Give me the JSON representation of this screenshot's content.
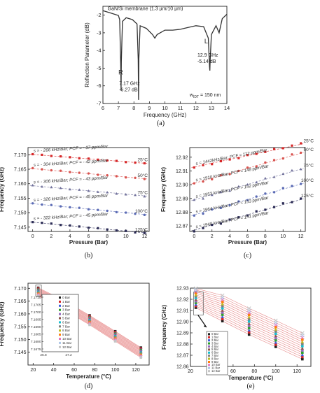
{
  "chart_data": [
    {
      "id": "a",
      "type": "line",
      "panel_label": "(a)",
      "title": "GaN/Si membrane (1.3 µm/10 µm)",
      "xlabel": "Frequency (GHz)",
      "ylabel": "Reflection Parameter (dB)",
      "xlim": [
        6,
        14
      ],
      "ylim": [
        -7,
        -1.5
      ],
      "xticks": [
        6,
        7,
        8,
        9,
        10,
        11,
        12,
        13,
        14
      ],
      "yticks": [
        -2,
        -3,
        -4,
        -5,
        -6,
        -7
      ],
      "series": [
        {
          "x": [
            6.0,
            6.5,
            7.0,
            7.08,
            7.15,
            7.17,
            7.19,
            7.26,
            7.5,
            7.9,
            8.2,
            8.28,
            8.3,
            8.32,
            8.4,
            8.8,
            9.2,
            9.35,
            9.5,
            10.0,
            10.5,
            11.0,
            11.5,
            12.0,
            12.5,
            12.8,
            12.88,
            12.9,
            12.92,
            13.0,
            13.3,
            13.5,
            13.7,
            14.0
          ],
          "y": [
            -1.75,
            -1.88,
            -2.02,
            -2.25,
            -4.8,
            -6.27,
            -4.6,
            -2.35,
            -2.15,
            -2.25,
            -2.5,
            -4.5,
            -6.8,
            -4.5,
            -2.6,
            -2.75,
            -3.1,
            -3.3,
            -3.1,
            -2.85,
            -2.85,
            -2.8,
            -2.7,
            -2.6,
            -2.65,
            -3.3,
            -4.9,
            -5.14,
            -4.6,
            -3.1,
            -2.6,
            -3.0,
            -2.2,
            -1.95
          ]
        }
      ],
      "annotations": [
        {
          "text": "R",
          "x": 7.0,
          "y": -5.35
        },
        {
          "text": "7.17 GHz",
          "x": 7.05,
          "y": -5.95
        },
        {
          "text": "-6.27 dB",
          "x": 7.05,
          "y": -6.3
        },
        {
          "text": "L",
          "x": 12.55,
          "y": -3.6
        },
        {
          "text": "12.9 GHz",
          "x": 12.1,
          "y": -4.35
        },
        {
          "text": "-5.14 dB",
          "x": 12.1,
          "y": -4.7
        },
        {
          "text": "w",
          "sub": "IDT",
          "rest": " = 150 nm",
          "x": 11.6,
          "y": -6.6
        }
      ]
    },
    {
      "id": "b",
      "type": "scatter",
      "panel_label": "(b)",
      "xlabel": "Pressure (Bar)",
      "ylabel": "Frequency (GHz)",
      "xlim": [
        -0.5,
        12.5
      ],
      "ylim": [
        7.1435,
        7.1725
      ],
      "xticks": [
        0,
        2,
        4,
        6,
        8,
        10,
        12
      ],
      "yticks": [
        7.145,
        7.15,
        7.155,
        7.16,
        7.165,
        7.17
      ],
      "ytick_labels": [
        "7.145",
        "7.150",
        "7.155",
        "7.160",
        "7.165",
        "7.170"
      ],
      "x": [
        0,
        1,
        2,
        3,
        4,
        5,
        6,
        7,
        8,
        9,
        10,
        11,
        12
      ],
      "series": [
        {
          "name": "25°C",
          "color": "#d62728",
          "start": 7.1702,
          "slope": -0.000266
        },
        {
          "name": "50°C",
          "color": "#d9534f",
          "start": 7.1653,
          "slope": -0.000304
        },
        {
          "name": "75°C",
          "color": "#6f6f9a",
          "start": 7.1594,
          "slope": -0.000306
        },
        {
          "name": "100°C",
          "color": "#5b6bb5",
          "start": 7.1532,
          "slope": -0.000326
        },
        {
          "name": "125°C",
          "color": "#2b2b55",
          "start": 7.1468,
          "slope": -0.000322
        }
      ],
      "annotations": [
        "s = - 266 kHz/Bar; PCF = - 37 ppm/Bar",
        "s = - 304 kHz/Bar; PCF = - 42 ppm/Bar",
        "s = - 306 kHz/Bar; PCF = - 43 ppm/Bar",
        "s = - 326 kHz/Bar; PCF = - 45 ppm/Bar",
        "s = - 322 kHz/Bar; PCF = - 45 ppm/Bar"
      ]
    },
    {
      "id": "c",
      "type": "scatter",
      "panel_label": "(c)",
      "xlabel": "Pressure (Bar)",
      "ylabel": "Frequency (GHz)",
      "xlim": [
        -0.5,
        12.5
      ],
      "ylim": [
        12.866,
        12.927
      ],
      "xticks": [
        0,
        2,
        4,
        6,
        8,
        10,
        12
      ],
      "yticks": [
        12.87,
        12.88,
        12.89,
        12.9,
        12.91,
        12.92
      ],
      "ytick_labels": [
        "12.87",
        "12.88",
        "12.89",
        "12.90",
        "12.91",
        "12.92"
      ],
      "x": [
        0,
        1,
        2,
        3,
        4,
        5,
        6,
        7,
        8,
        9,
        10,
        11,
        12
      ],
      "series": [
        {
          "name": "25°C",
          "color": "#d62728",
          "start": 12.9125,
          "slope": 0.00144
        },
        {
          "name": "50°C",
          "color": "#d9534f",
          "start": 12.9005,
          "slope": 0.00191
        },
        {
          "name": "75°C",
          "color": "#6f6f9a",
          "start": 12.8885,
          "slope": 0.00195
        },
        {
          "name": "100°C",
          "color": "#5b6bb5",
          "start": 12.8775,
          "slope": 0.00196
        },
        {
          "name": "125°C",
          "color": "#2b2b55",
          "start": 12.8665,
          "slope": 0.00194
        }
      ],
      "annotations": [
        "s = 1442kHz/Bar; PCF = 112 ppm/Bar",
        "s = 1910 kHz/Bar; PCF = 148 ppm/Bar",
        "s = 1953 kHz/Bar; PCF = 152 ppm/Bar",
        "s = 1964 kHz/Bar; PCF = 153 ppm/Bar",
        "s = 1940 kHz/Bar; PCF = 151 ppm/Bar"
      ]
    },
    {
      "id": "d",
      "type": "scatter",
      "panel_label": "(d)",
      "xlabel": "Temperature (°C)",
      "ylabel": "Frequency (GHz)",
      "xlim": [
        15,
        133
      ],
      "ylim": [
        7.14,
        7.172
      ],
      "xticks": [
        20,
        40,
        60,
        80,
        100,
        120
      ],
      "yticks": [
        7.145,
        7.15,
        7.155,
        7.16,
        7.165,
        7.17
      ],
      "ytick_labels": [
        "7.145",
        "7.150",
        "7.155",
        "7.160",
        "7.165",
        "7.170"
      ],
      "temperatures": [
        25,
        50,
        75,
        100,
        125
      ],
      "pressures": [
        "0 Bar",
        "1 Bar",
        "2 Bar",
        "3 Bar",
        "4 Bar",
        "5 Bar",
        "6 Bar",
        "7 Bar",
        "8 Bar",
        "9 Bar",
        "10 Bar",
        "11 Bar",
        "12 Bar"
      ],
      "freq_at_0bar": [
        7.1702,
        7.1653,
        7.1594,
        7.1532,
        7.1468
      ],
      "slope_per_bar": [
        -0.000266,
        -0.000304,
        -0.000306,
        -0.000326,
        -0.000322
      ],
      "inset": {
        "xticks": [
          "26.8",
          "27.2"
        ],
        "yticks": [
          "7.1710",
          "7.1705",
          "7.1700",
          "7.1695",
          "7.1690",
          "7.1685",
          "7.1680",
          "7.1675"
        ]
      }
    },
    {
      "id": "e",
      "type": "scatter",
      "panel_label": "(e)",
      "xlabel": "Temperature (°C)",
      "ylabel": "Frequency (GHz)",
      "xlim": [
        20,
        133
      ],
      "ylim": [
        12.86,
        12.93
      ],
      "xticks": [
        20,
        40,
        60,
        80,
        100,
        120
      ],
      "yticks": [
        12.86,
        12.87,
        12.88,
        12.89,
        12.9,
        12.91,
        12.92,
        12.93
      ],
      "ytick_labels": [
        "12.86",
        "12.87",
        "12.88",
        "12.89",
        "12.90",
        "12.91",
        "12.92",
        "12.93"
      ],
      "temperatures": [
        25,
        50,
        75,
        100,
        125
      ],
      "pressures": [
        "0 Bar",
        "1 Bar",
        "2 Bar",
        "3 Bar",
        "4 Bar",
        "5 Bar",
        "6 Bar",
        "7 Bar",
        "8 Bar",
        "9 Bar",
        "10 Bar",
        "11 Bar",
        "12 Bar"
      ],
      "freq_at_0bar": [
        12.9125,
        12.9005,
        12.8885,
        12.8775,
        12.8665
      ],
      "slope_per_bar": [
        0.00144,
        0.00191,
        0.00195,
        0.00196,
        0.00194
      ]
    }
  ],
  "series_colors": {
    "pressure": [
      "#1f1f1f",
      "#d62728",
      "#3b5bdb",
      "#2ca02c",
      "#9467bd",
      "#8c564b",
      "#17becf",
      "#7f7f7f",
      "#bcbd22",
      "#ff7f0e",
      "#e377c2",
      "#aec7e8",
      "#c5c5c5"
    ],
    "fit_line": "#e06666",
    "curve": "#333333"
  }
}
